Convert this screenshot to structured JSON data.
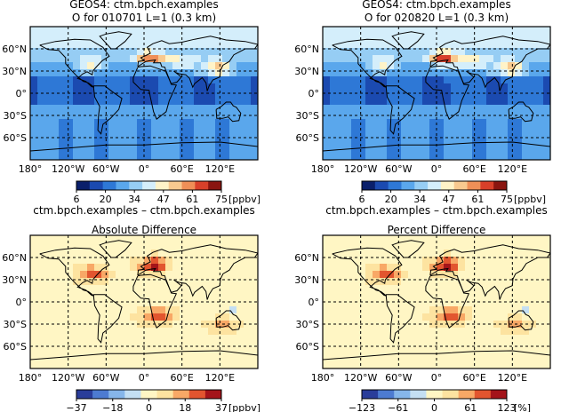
{
  "figure": {
    "top_title": "GEOS4: ctm.bpch.examples",
    "diff_title": "ctm.bpch.examples – ctm.bpch.examples"
  },
  "panels": [
    {
      "id": "p1",
      "title": "GEOS4: ctm.bpch.examples",
      "subtitle": "O  for 010701 L=1 (0.3 km)",
      "type": "conc"
    },
    {
      "id": "p2",
      "title": "GEOS4: ctm.bpch.examples",
      "subtitle": "O  for 020820 L=1 (0.3 km)",
      "type": "conc"
    },
    {
      "id": "p3",
      "title": "ctm.bpch.examples – ctm.bpch.examples",
      "subtitle": "Absolute Difference",
      "type": "diff"
    },
    {
      "id": "p4",
      "title": "ctm.bpch.examples – ctm.bpch.examples",
      "subtitle": "Percent Difference",
      "type": "diff"
    }
  ],
  "axes": {
    "lon_labels": [
      "180°",
      "120°W",
      "60°W",
      "0°",
      "60°E",
      "120°E"
    ],
    "lat_labels": [
      "60°N",
      "30°N",
      "0°",
      "30°S",
      "60°S"
    ]
  },
  "colorbars": [
    {
      "id": "cb1",
      "ticks": [
        "6",
        "20",
        "34",
        "47",
        "61",
        "75"
      ],
      "unit": "[ppbv]"
    },
    {
      "id": "cb2",
      "ticks": [
        "6",
        "20",
        "34",
        "47",
        "61",
        "75"
      ],
      "unit": "[ppbv]"
    },
    {
      "id": "cb3",
      "ticks": [
        "−37",
        "−18",
        "0",
        "18",
        "37"
      ],
      "unit": "[ppbv]"
    },
    {
      "id": "cb4",
      "ticks": [
        "−123",
        "−61",
        "0",
        "61",
        "123"
      ],
      "unit": "[%]"
    }
  ],
  "colors": {
    "conc_scale": [
      "#0a1f6b",
      "#1b4ab0",
      "#2e78d6",
      "#5aa7ec",
      "#96cdf4",
      "#d4eefb",
      "#fff3c8",
      "#f8c98f",
      "#ef8f57",
      "#d8402a",
      "#8a1510"
    ],
    "diff_scale": [
      "#2a3d9a",
      "#4d7bd1",
      "#86b6ea",
      "#c4dff3",
      "#fff6c4",
      "#fde3a0",
      "#f8a866",
      "#e2552f",
      "#a4141a"
    ],
    "land_line": "#000000"
  }
}
